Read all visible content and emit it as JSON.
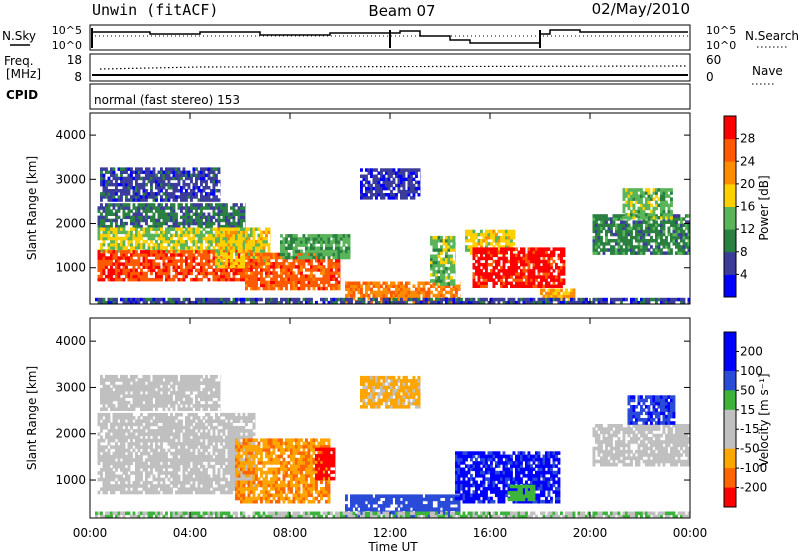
{
  "header": {
    "station": "Unwin (fitACF)",
    "beam": "Beam 07",
    "date": "02/May/2010"
  },
  "status_panel": {
    "nsky_label": "N.Sky",
    "nsearch_label": "N.Search",
    "noise_ticks": [
      "10^5",
      "10^0"
    ],
    "freq_label_1": "Freq.",
    "freq_label_2": "[MHz]",
    "freq_ticks": [
      "18",
      "8"
    ],
    "nave_label": "Nave",
    "nave_ticks": [
      "60",
      "0"
    ],
    "cpid_label": "CPID",
    "cpid_text": "normal (fast stereo) 153"
  },
  "colors": {
    "power_scale": [
      "#0000ff",
      "#3c3c9b",
      "#2a8040",
      "#5ab45a",
      "#ffd000",
      "#ff8c00",
      "#ff5a00",
      "#ff0000"
    ],
    "velocity_scale": [
      "#0000ff",
      "#2a4bd7",
      "#3cb43c",
      "#c0c0c0",
      "#c0c0c0",
      "#ffa500",
      "#ff6600",
      "#ff0000"
    ]
  },
  "chart_data": [
    {
      "type": "heatmap",
      "name": "power",
      "ylabel": "Slant Range [km]",
      "xlabel": "",
      "yticks": [
        "1000",
        "2000",
        "3000",
        "4000"
      ],
      "ylim": [
        180,
        4500
      ],
      "colorbar_label": "Power [dB]",
      "colorbar_ticks": [
        "4",
        "8",
        "12",
        "16",
        "20",
        "24",
        "28"
      ],
      "colorbar_range": [
        0,
        32
      ],
      "regions": [
        {
          "t0": 0.3,
          "t1": 6.2,
          "r0": 1900,
          "r1": 2450,
          "value": 9
        },
        {
          "t0": 0.3,
          "t1": 6.5,
          "r0": 1350,
          "r1": 1900,
          "value": 16
        },
        {
          "t0": 0.3,
          "t1": 6.7,
          "r0": 700,
          "r1": 1350,
          "value": 27
        },
        {
          "t0": 0.4,
          "t1": 5.2,
          "r0": 2500,
          "r1": 3250,
          "value": 6
        },
        {
          "t0": 5.0,
          "t1": 7.2,
          "r0": 1000,
          "r1": 1900,
          "value": 18
        },
        {
          "t0": 6.2,
          "t1": 10.0,
          "r0": 500,
          "r1": 1300,
          "value": 26
        },
        {
          "t0": 7.6,
          "t1": 10.4,
          "r0": 1200,
          "r1": 1700,
          "value": 13
        },
        {
          "t0": 10.2,
          "t1": 14.8,
          "r0": 200,
          "r1": 650,
          "value": 23
        },
        {
          "t0": 10.8,
          "t1": 13.2,
          "r0": 2550,
          "r1": 3200,
          "value": 5
        },
        {
          "t0": 13.6,
          "t1": 14.6,
          "r0": 600,
          "r1": 1700,
          "value": 14
        },
        {
          "t0": 15.0,
          "t1": 17.0,
          "r0": 1300,
          "r1": 1800,
          "value": 18
        },
        {
          "t0": 15.3,
          "t1": 19.0,
          "r0": 550,
          "r1": 1400,
          "value": 30
        },
        {
          "t0": 18.0,
          "t1": 19.4,
          "r0": 250,
          "r1": 500,
          "value": 21
        },
        {
          "t0": 20.1,
          "t1": 24.0,
          "r0": 1300,
          "r1": 2200,
          "value": 10
        },
        {
          "t0": 21.3,
          "t1": 23.3,
          "r0": 2100,
          "r1": 2800,
          "value": 14
        },
        {
          "t0": 0.2,
          "t1": 24.0,
          "r0": 180,
          "r1": 300,
          "value": 6
        }
      ]
    },
    {
      "type": "heatmap",
      "name": "velocity",
      "ylabel": "Slant Range [km]",
      "xlabel": "Time UT",
      "yticks": [
        "1000",
        "2000",
        "3000",
        "4000"
      ],
      "ylim": [
        180,
        4500
      ],
      "colorbar_label": "Velocity [m s⁻¹]",
      "colorbar_ticks": [
        "200",
        "100",
        "50",
        "15",
        "-15",
        "-50",
        "-100",
        "-200"
      ],
      "regions": [
        {
          "t0": 0.3,
          "t1": 6.6,
          "r0": 700,
          "r1": 2450,
          "value": 0
        },
        {
          "t0": 0.4,
          "t1": 5.2,
          "r0": 2500,
          "r1": 3250,
          "value": 0
        },
        {
          "t0": 5.8,
          "t1": 9.6,
          "r0": 500,
          "r1": 1900,
          "value": -70
        },
        {
          "t0": 9.0,
          "t1": 9.8,
          "r0": 1000,
          "r1": 1700,
          "value": -220
        },
        {
          "t0": 10.2,
          "t1": 14.8,
          "r0": 200,
          "r1": 650,
          "value": 130
        },
        {
          "t0": 10.8,
          "t1": 13.2,
          "r0": 2550,
          "r1": 3200,
          "value": -40
        },
        {
          "t0": 14.6,
          "t1": 18.8,
          "r0": 500,
          "r1": 1600,
          "value": 160
        },
        {
          "t0": 16.7,
          "t1": 17.8,
          "r0": 550,
          "r1": 900,
          "value": 55
        },
        {
          "t0": 20.1,
          "t1": 24.0,
          "r0": 1300,
          "r1": 2200,
          "value": 0
        },
        {
          "t0": 21.5,
          "t1": 23.4,
          "r0": 2200,
          "r1": 2800,
          "value": 140
        },
        {
          "t0": 0.2,
          "t1": 24.0,
          "r0": 180,
          "r1": 300,
          "value": 30
        }
      ]
    }
  ],
  "time_axis": {
    "xlim": [
      0,
      24
    ],
    "ticks": [
      "00:00",
      "04:00",
      "08:00",
      "12:00",
      "16:00",
      "20:00",
      "00:00"
    ],
    "label": "Time UT"
  }
}
